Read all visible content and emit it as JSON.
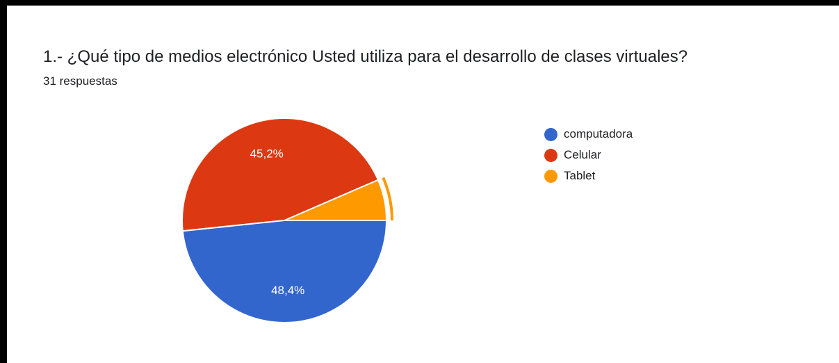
{
  "header": {
    "title": "1.- ¿Qué tipo de medios electrónico Usted utiliza para el desarrollo de clases virtuales?",
    "subtitle": "31 respuestas"
  },
  "chart_data": {
    "type": "pie",
    "categories": [
      "computadora",
      "Celular",
      "Tablet"
    ],
    "values": [
      48.4,
      45.2,
      6.5
    ],
    "labels": [
      "48,4%",
      "45,2%",
      ""
    ],
    "colors": [
      "#3366cc",
      "#dc3912",
      "#ff9900"
    ],
    "highlighted": "Tablet",
    "legend_position": "right"
  }
}
